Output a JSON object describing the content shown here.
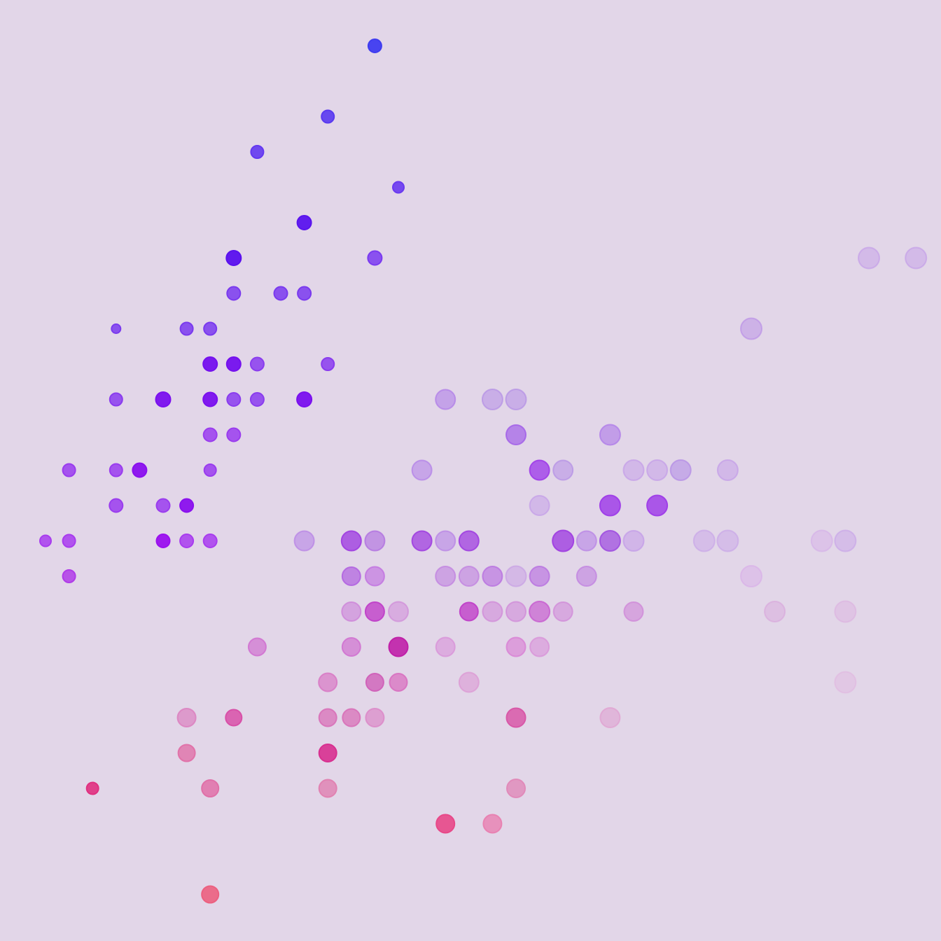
{
  "chart_data": {
    "type": "scatter",
    "title": "",
    "xlabel": "",
    "ylabel": "",
    "xlim": [
      0,
      40
    ],
    "ylim": [
      0,
      26
    ],
    "grid": false,
    "legend": "none",
    "background_color": "#e2d6e8",
    "points": [
      {
        "x": 15,
        "y": 25,
        "size": 9.5,
        "color": "#3f3cf0",
        "opacity": 0.95
      },
      {
        "x": 13,
        "y": 23,
        "size": 9,
        "color": "#5a3af0",
        "opacity": 0.9
      },
      {
        "x": 10,
        "y": 22,
        "size": 9,
        "color": "#6438f0",
        "opacity": 0.9
      },
      {
        "x": 16,
        "y": 21,
        "size": 8,
        "color": "#6a3af0",
        "opacity": 0.9
      },
      {
        "x": 12,
        "y": 20,
        "size": 10,
        "color": "#5a14ee",
        "opacity": 0.95
      },
      {
        "x": 9,
        "y": 19,
        "size": 10.5,
        "color": "#5a10ee",
        "opacity": 0.95
      },
      {
        "x": 15,
        "y": 19,
        "size": 10,
        "color": "#7a3af0",
        "opacity": 0.85
      },
      {
        "x": 36,
        "y": 19,
        "size": 15,
        "color": "#c29ae8",
        "opacity": 0.45
      },
      {
        "x": 38,
        "y": 19,
        "size": 15,
        "color": "#c29ae8",
        "opacity": 0.45
      },
      {
        "x": 9,
        "y": 18,
        "size": 9.5,
        "color": "#7a3aee",
        "opacity": 0.85
      },
      {
        "x": 11,
        "y": 18,
        "size": 9.5,
        "color": "#7a3aee",
        "opacity": 0.85
      },
      {
        "x": 12,
        "y": 18,
        "size": 9.5,
        "color": "#7a3aee",
        "opacity": 0.85
      },
      {
        "x": 4,
        "y": 17,
        "size": 6.5,
        "color": "#7a3aee",
        "opacity": 0.85
      },
      {
        "x": 7,
        "y": 17,
        "size": 9,
        "color": "#7a3aee",
        "opacity": 0.85
      },
      {
        "x": 8,
        "y": 17,
        "size": 9,
        "color": "#7a3aee",
        "opacity": 0.85
      },
      {
        "x": 31,
        "y": 17,
        "size": 15,
        "color": "#b88ee6",
        "opacity": 0.5
      },
      {
        "x": 8,
        "y": 16,
        "size": 10,
        "color": "#7410ee",
        "opacity": 0.95
      },
      {
        "x": 9,
        "y": 16,
        "size": 10,
        "color": "#7410ee",
        "opacity": 0.95
      },
      {
        "x": 10,
        "y": 16,
        "size": 9.5,
        "color": "#8a3cee",
        "opacity": 0.85
      },
      {
        "x": 13,
        "y": 16,
        "size": 9,
        "color": "#8a3cee",
        "opacity": 0.85
      },
      {
        "x": 4,
        "y": 15,
        "size": 9,
        "color": "#8a3cee",
        "opacity": 0.85
      },
      {
        "x": 6,
        "y": 15,
        "size": 10.5,
        "color": "#7a10ee",
        "opacity": 0.95
      },
      {
        "x": 8,
        "y": 15,
        "size": 10,
        "color": "#7a10ee",
        "opacity": 0.95
      },
      {
        "x": 9,
        "y": 15,
        "size": 9.5,
        "color": "#8a3cee",
        "opacity": 0.85
      },
      {
        "x": 10,
        "y": 15,
        "size": 9.5,
        "color": "#8a3cee",
        "opacity": 0.85
      },
      {
        "x": 12,
        "y": 15,
        "size": 10.5,
        "color": "#7a10ee",
        "opacity": 0.95
      },
      {
        "x": 18,
        "y": 15,
        "size": 14,
        "color": "#b07ee8",
        "opacity": 0.6
      },
      {
        "x": 20,
        "y": 15,
        "size": 14.5,
        "color": "#b48ee6",
        "opacity": 0.55
      },
      {
        "x": 21,
        "y": 15,
        "size": 14.5,
        "color": "#b48ee6",
        "opacity": 0.55
      },
      {
        "x": 8,
        "y": 14,
        "size": 9.5,
        "color": "#9a3cee",
        "opacity": 0.85
      },
      {
        "x": 9,
        "y": 14,
        "size": 9.5,
        "color": "#9a3cee",
        "opacity": 0.85
      },
      {
        "x": 21,
        "y": 14,
        "size": 14,
        "color": "#a260e8",
        "opacity": 0.7
      },
      {
        "x": 25,
        "y": 14,
        "size": 14.5,
        "color": "#b07ee8",
        "opacity": 0.65
      },
      {
        "x": 2,
        "y": 13,
        "size": 9,
        "color": "#9a3cee",
        "opacity": 0.85
      },
      {
        "x": 4,
        "y": 13,
        "size": 9,
        "color": "#9a3cee",
        "opacity": 0.85
      },
      {
        "x": 5,
        "y": 13,
        "size": 10,
        "color": "#8a10ee",
        "opacity": 0.95
      },
      {
        "x": 8,
        "y": 13,
        "size": 8.5,
        "color": "#9a3cee",
        "opacity": 0.85
      },
      {
        "x": 17,
        "y": 13,
        "size": 14,
        "color": "#b07ee8",
        "opacity": 0.55
      },
      {
        "x": 22,
        "y": 13,
        "size": 14,
        "color": "#a040e8",
        "opacity": 0.8
      },
      {
        "x": 23,
        "y": 13,
        "size": 14,
        "color": "#b48ee6",
        "opacity": 0.55
      },
      {
        "x": 26,
        "y": 13,
        "size": 14.5,
        "color": "#c29ae8",
        "opacity": 0.5
      },
      {
        "x": 27,
        "y": 13,
        "size": 14.5,
        "color": "#c29ae8",
        "opacity": 0.5
      },
      {
        "x": 28,
        "y": 13,
        "size": 14.5,
        "color": "#b48ee6",
        "opacity": 0.6
      },
      {
        "x": 30,
        "y": 13,
        "size": 14.5,
        "color": "#c29ae8",
        "opacity": 0.5
      },
      {
        "x": 4,
        "y": 12,
        "size": 9.5,
        "color": "#9a3cee",
        "opacity": 0.85
      },
      {
        "x": 6,
        "y": 12,
        "size": 9.5,
        "color": "#9a3cee",
        "opacity": 0.85
      },
      {
        "x": 7,
        "y": 12,
        "size": 9.5,
        "color": "#8a10ee",
        "opacity": 0.95
      },
      {
        "x": 22,
        "y": 12,
        "size": 14,
        "color": "#c29ae8",
        "opacity": 0.5
      },
      {
        "x": 25,
        "y": 12,
        "size": 14.5,
        "color": "#a040e8",
        "opacity": 0.85
      },
      {
        "x": 27,
        "y": 12,
        "size": 14.5,
        "color": "#a040e8",
        "opacity": 0.85
      },
      {
        "x": 1,
        "y": 11,
        "size": 8,
        "color": "#a83cee",
        "opacity": 0.85
      },
      {
        "x": 2,
        "y": 11,
        "size": 9,
        "color": "#a83cee",
        "opacity": 0.85
      },
      {
        "x": 6,
        "y": 11,
        "size": 9.5,
        "color": "#9a10ee",
        "opacity": 0.95
      },
      {
        "x": 7,
        "y": 11,
        "size": 9.5,
        "color": "#a83cee",
        "opacity": 0.85
      },
      {
        "x": 8,
        "y": 11,
        "size": 9.5,
        "color": "#a83cee",
        "opacity": 0.85
      },
      {
        "x": 12,
        "y": 11,
        "size": 14,
        "color": "#b884e6",
        "opacity": 0.6
      },
      {
        "x": 14,
        "y": 11,
        "size": 14,
        "color": "#a040e0",
        "opacity": 0.8
      },
      {
        "x": 15,
        "y": 11,
        "size": 14,
        "color": "#b070e0",
        "opacity": 0.65
      },
      {
        "x": 17,
        "y": 11,
        "size": 14,
        "color": "#a040e0",
        "opacity": 0.75
      },
      {
        "x": 18,
        "y": 11,
        "size": 14,
        "color": "#b884e6",
        "opacity": 0.6
      },
      {
        "x": 19,
        "y": 11,
        "size": 14,
        "color": "#a040e0",
        "opacity": 0.75
      },
      {
        "x": 23,
        "y": 11,
        "size": 15,
        "color": "#a040e0",
        "opacity": 0.8
      },
      {
        "x": 24,
        "y": 11,
        "size": 14,
        "color": "#b884e6",
        "opacity": 0.6
      },
      {
        "x": 25,
        "y": 11,
        "size": 14.5,
        "color": "#a050e0",
        "opacity": 0.75
      },
      {
        "x": 26,
        "y": 11,
        "size": 14.5,
        "color": "#c29ae8",
        "opacity": 0.55
      },
      {
        "x": 29,
        "y": 11,
        "size": 15,
        "color": "#c8a4e8",
        "opacity": 0.5
      },
      {
        "x": 30,
        "y": 11,
        "size": 15,
        "color": "#c8a4e8",
        "opacity": 0.5
      },
      {
        "x": 34,
        "y": 11,
        "size": 15,
        "color": "#d4aee8",
        "opacity": 0.45
      },
      {
        "x": 35,
        "y": 11,
        "size": 15,
        "color": "#c8a4e8",
        "opacity": 0.5
      },
      {
        "x": 2,
        "y": 10,
        "size": 9,
        "color": "#b03ce8",
        "opacity": 0.85
      },
      {
        "x": 14,
        "y": 10,
        "size": 13,
        "color": "#b060e0",
        "opacity": 0.7
      },
      {
        "x": 15,
        "y": 10,
        "size": 13.5,
        "color": "#c070e0",
        "opacity": 0.65
      },
      {
        "x": 18,
        "y": 10,
        "size": 14,
        "color": "#c080e0",
        "opacity": 0.6
      },
      {
        "x": 19,
        "y": 10,
        "size": 14,
        "color": "#c080e0",
        "opacity": 0.6
      },
      {
        "x": 20,
        "y": 10,
        "size": 14,
        "color": "#b870e0",
        "opacity": 0.65
      },
      {
        "x": 21,
        "y": 10,
        "size": 14.5,
        "color": "#c8a0e4",
        "opacity": 0.55
      },
      {
        "x": 22,
        "y": 10,
        "size": 14,
        "color": "#b870e0",
        "opacity": 0.65
      },
      {
        "x": 24,
        "y": 10,
        "size": 14,
        "color": "#c080e0",
        "opacity": 0.6
      },
      {
        "x": 31,
        "y": 10,
        "size": 15,
        "color": "#d8aee8",
        "opacity": 0.5
      },
      {
        "x": 14,
        "y": 9,
        "size": 13.5,
        "color": "#cc80d8",
        "opacity": 0.6
      },
      {
        "x": 15,
        "y": 9,
        "size": 13.5,
        "color": "#c040c8",
        "opacity": 0.8
      },
      {
        "x": 16,
        "y": 9,
        "size": 14,
        "color": "#d08ad8",
        "opacity": 0.55
      },
      {
        "x": 19,
        "y": 9,
        "size": 13,
        "color": "#c040c8",
        "opacity": 0.8
      },
      {
        "x": 20,
        "y": 9,
        "size": 14,
        "color": "#d08ad8",
        "opacity": 0.6
      },
      {
        "x": 21,
        "y": 9,
        "size": 14,
        "color": "#d08ad8",
        "opacity": 0.6
      },
      {
        "x": 22,
        "y": 9,
        "size": 14.5,
        "color": "#c860d0",
        "opacity": 0.7
      },
      {
        "x": 23,
        "y": 9,
        "size": 13.5,
        "color": "#d08ad8",
        "opacity": 0.6
      },
      {
        "x": 26,
        "y": 9,
        "size": 13.5,
        "color": "#d08ad8",
        "opacity": 0.65
      },
      {
        "x": 32,
        "y": 9,
        "size": 14.5,
        "color": "#d8a8dc",
        "opacity": 0.5
      },
      {
        "x": 35,
        "y": 9,
        "size": 15,
        "color": "#dcb0e0",
        "opacity": 0.45
      },
      {
        "x": 10,
        "y": 8,
        "size": 12.5,
        "color": "#d070d0",
        "opacity": 0.7
      },
      {
        "x": 14,
        "y": 8,
        "size": 13,
        "color": "#d070d0",
        "opacity": 0.7
      },
      {
        "x": 16,
        "y": 8,
        "size": 13.5,
        "color": "#c020a8",
        "opacity": 0.9
      },
      {
        "x": 18,
        "y": 8,
        "size": 13.5,
        "color": "#d890d8",
        "opacity": 0.6
      },
      {
        "x": 21,
        "y": 8,
        "size": 13.5,
        "color": "#d880d4",
        "opacity": 0.65
      },
      {
        "x": 22,
        "y": 8,
        "size": 13.5,
        "color": "#d890d8",
        "opacity": 0.6
      },
      {
        "x": 13,
        "y": 7,
        "size": 13,
        "color": "#d878c4",
        "opacity": 0.7
      },
      {
        "x": 15,
        "y": 7,
        "size": 12.5,
        "color": "#d060b8",
        "opacity": 0.8
      },
      {
        "x": 16,
        "y": 7,
        "size": 12.5,
        "color": "#d870c0",
        "opacity": 0.75
      },
      {
        "x": 19,
        "y": 7,
        "size": 14,
        "color": "#dc98d4",
        "opacity": 0.6
      },
      {
        "x": 35,
        "y": 7,
        "size": 15,
        "color": "#e0b8e0",
        "opacity": 0.5
      },
      {
        "x": 7,
        "y": 6,
        "size": 13,
        "color": "#dc80c0",
        "opacity": 0.7
      },
      {
        "x": 9,
        "y": 6,
        "size": 11.5,
        "color": "#d850a8",
        "opacity": 0.85
      },
      {
        "x": 13,
        "y": 6,
        "size": 12.5,
        "color": "#d870b8",
        "opacity": 0.75
      },
      {
        "x": 14,
        "y": 6,
        "size": 12.5,
        "color": "#d870b8",
        "opacity": 0.75
      },
      {
        "x": 15,
        "y": 6,
        "size": 13,
        "color": "#dc88c8",
        "opacity": 0.7
      },
      {
        "x": 21,
        "y": 6,
        "size": 13.5,
        "color": "#d858a8",
        "opacity": 0.85
      },
      {
        "x": 25,
        "y": 6,
        "size": 14,
        "color": "#e0a0d0",
        "opacity": 0.6
      },
      {
        "x": 7,
        "y": 5,
        "size": 12,
        "color": "#e070a8",
        "opacity": 0.8
      },
      {
        "x": 13,
        "y": 5,
        "size": 12.5,
        "color": "#d83090",
        "opacity": 0.9
      },
      {
        "x": 3,
        "y": 4,
        "size": 8.5,
        "color": "#e03080",
        "opacity": 0.9
      },
      {
        "x": 8,
        "y": 4,
        "size": 12,
        "color": "#e070a8",
        "opacity": 0.85
      },
      {
        "x": 13,
        "y": 4,
        "size": 12.5,
        "color": "#e080b0",
        "opacity": 0.8
      },
      {
        "x": 21,
        "y": 4,
        "size": 13,
        "color": "#e088b8",
        "opacity": 0.8
      },
      {
        "x": 18,
        "y": 3,
        "size": 13,
        "color": "#e84888",
        "opacity": 0.9
      },
      {
        "x": 20,
        "y": 3,
        "size": 13,
        "color": "#e880b0",
        "opacity": 0.8
      },
      {
        "x": 8,
        "y": 1,
        "size": 12,
        "color": "#ec6080",
        "opacity": 0.9
      }
    ]
  }
}
